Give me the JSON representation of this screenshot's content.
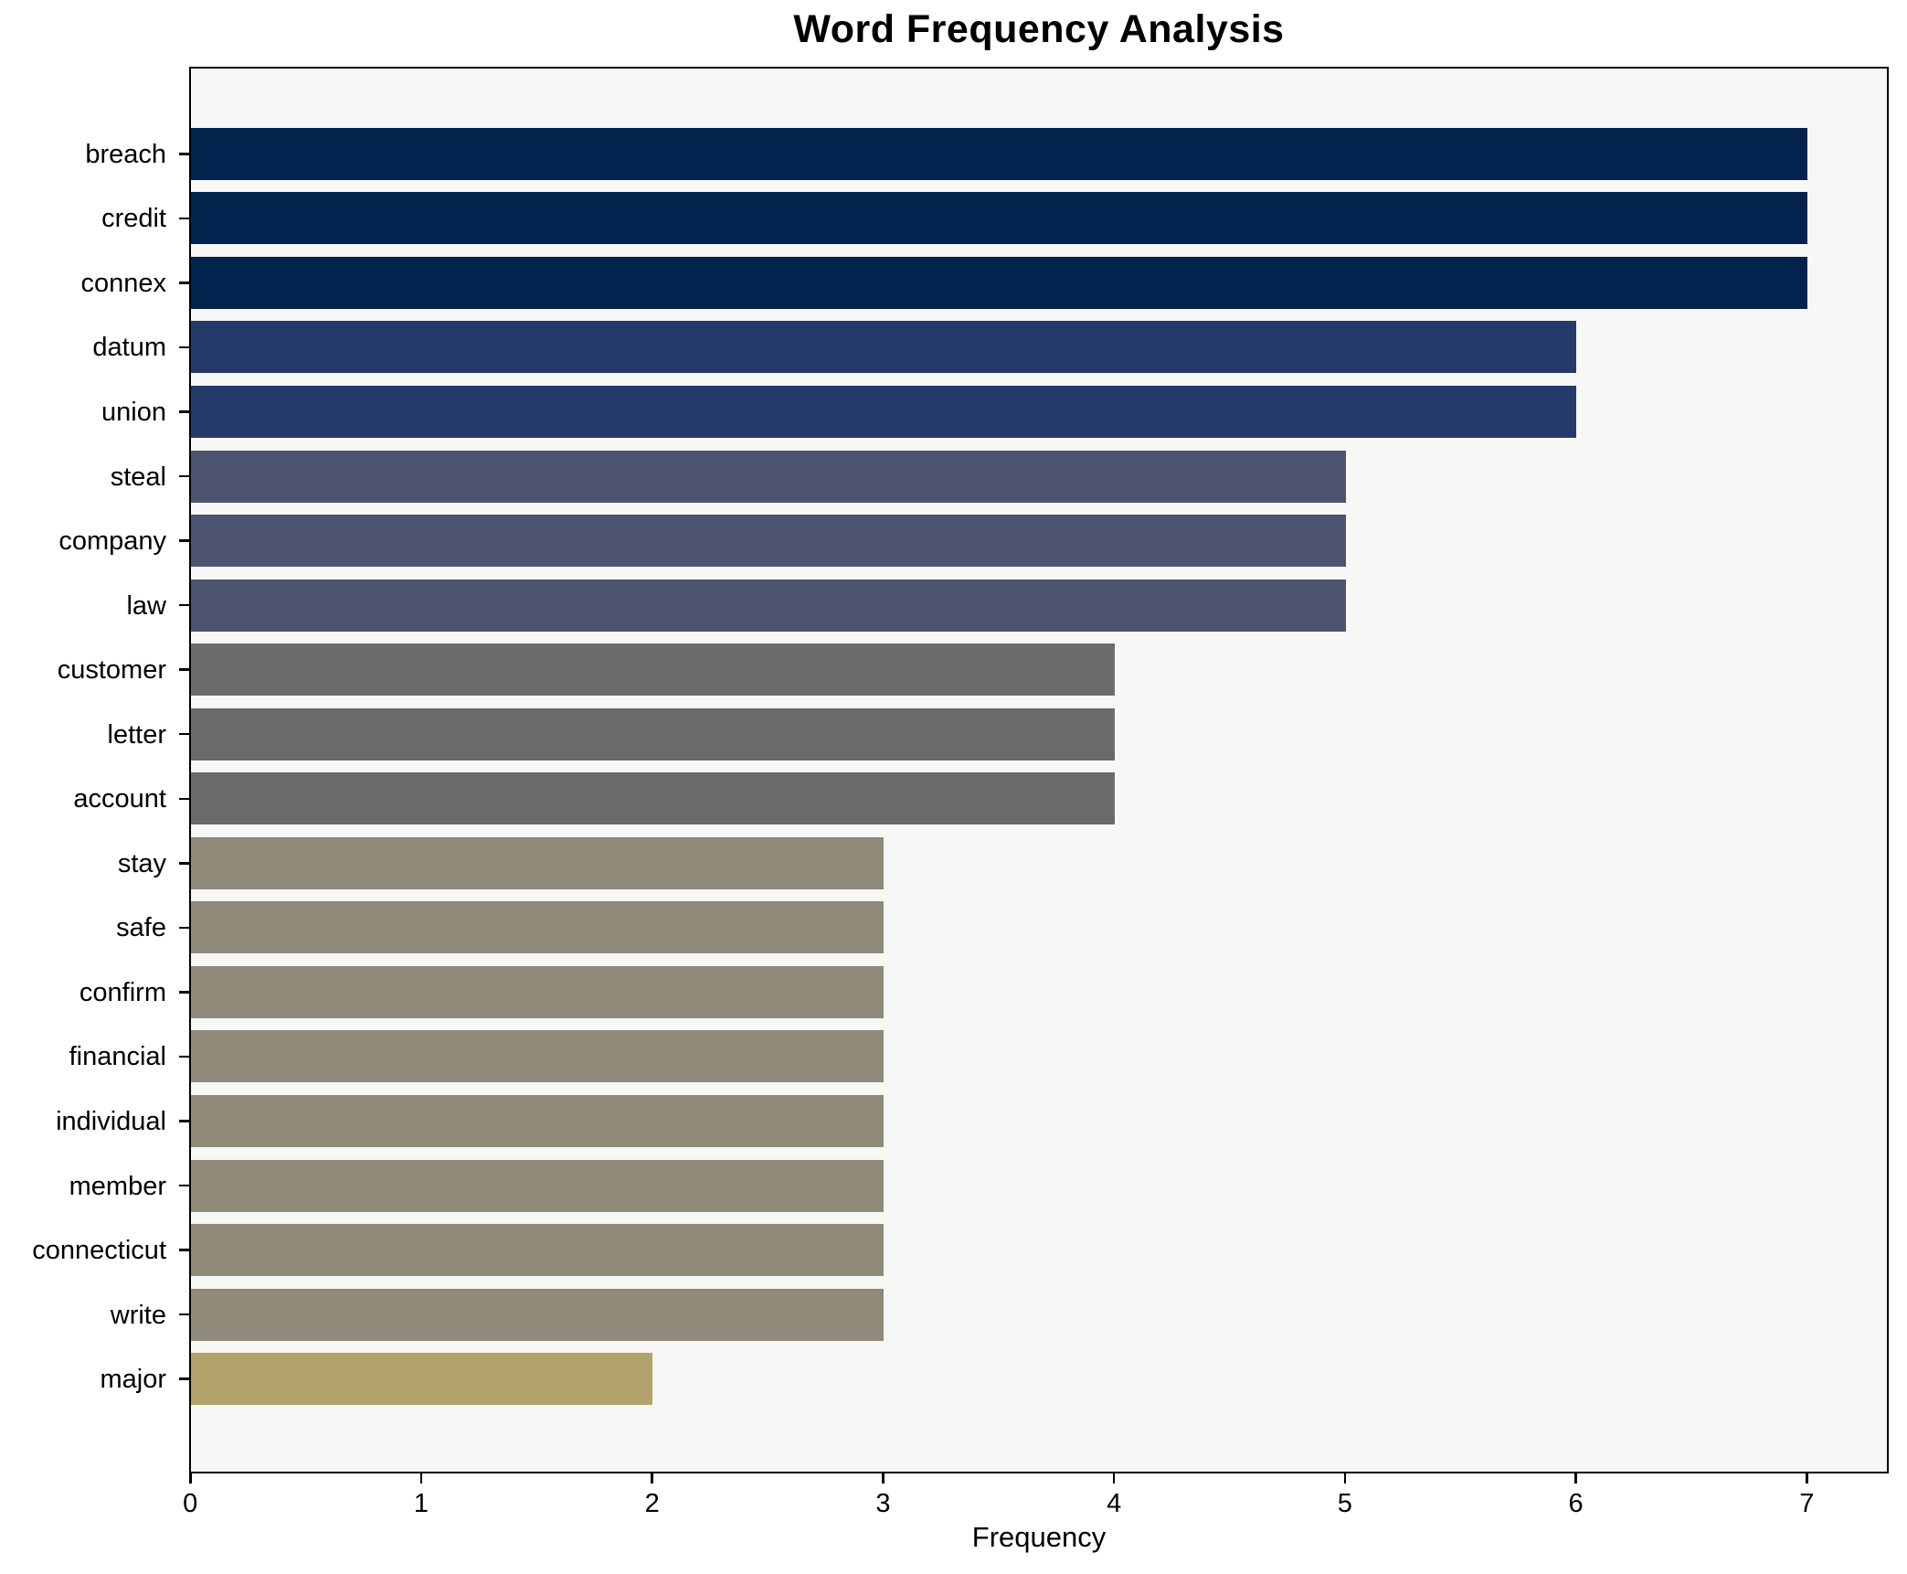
{
  "chart_data": {
    "type": "bar",
    "orientation": "horizontal",
    "title": "Word Frequency Analysis",
    "xlabel": "Frequency",
    "ylabel": "",
    "categories": [
      "breach",
      "credit",
      "connex",
      "datum",
      "union",
      "steal",
      "company",
      "law",
      "customer",
      "letter",
      "account",
      "stay",
      "safe",
      "confirm",
      "financial",
      "individual",
      "member",
      "connecticut",
      "write",
      "major"
    ],
    "values": [
      7,
      7,
      7,
      6,
      6,
      5,
      5,
      5,
      4,
      4,
      4,
      3,
      3,
      3,
      3,
      3,
      3,
      3,
      3,
      2
    ],
    "bar_colors": [
      "#02234d",
      "#02234d",
      "#02234d",
      "#243a6b",
      "#243a6b",
      "#4d546f",
      "#4d546f",
      "#4d546f",
      "#6b6b6d",
      "#6b6b6d",
      "#6b6b6d",
      "#8f8a79",
      "#8f8a79",
      "#8f8a79",
      "#8f8a79",
      "#8f8a79",
      "#8f8a79",
      "#8f8a79",
      "#8f8a79",
      "#b1a369"
    ],
    "x_ticks": [
      0,
      1,
      2,
      3,
      4,
      5,
      6,
      7
    ],
    "xlim": [
      0,
      7.34
    ],
    "grid": false,
    "legend": "none",
    "plot_background": "#f7f7f5",
    "figure_background": "#ffffff",
    "spine_color": "#000000",
    "text_color": "#000000"
  }
}
